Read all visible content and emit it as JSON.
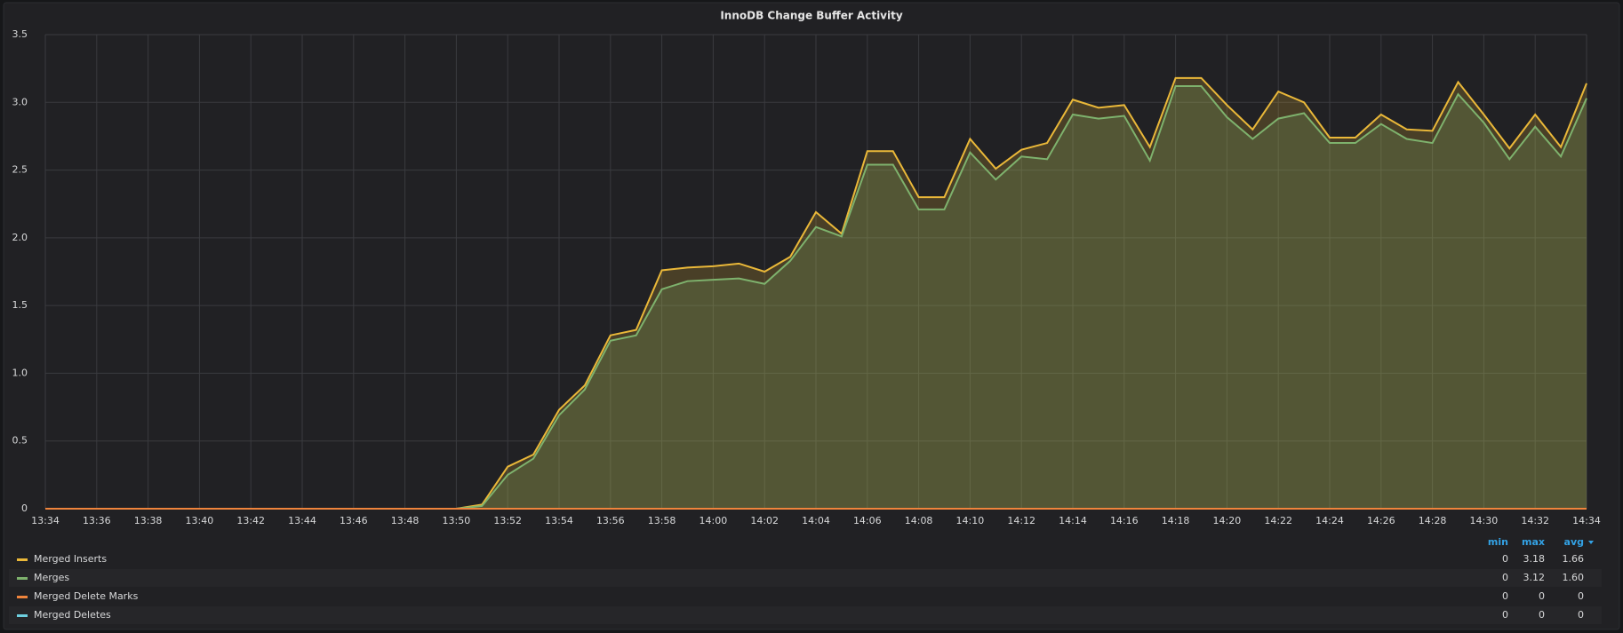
{
  "chart_data": {
    "type": "line",
    "title": "InnoDB Change Buffer Activity",
    "categories": [
      "13:34",
      null,
      "13:36",
      null,
      "13:38",
      null,
      "13:40",
      null,
      "13:42",
      null,
      "13:44",
      null,
      "13:46",
      null,
      "13:48",
      null,
      "13:50",
      null,
      "13:52",
      null,
      "13:54",
      null,
      "13:56",
      null,
      "13:58",
      null,
      "14:00",
      null,
      "14:02",
      null,
      "14:04",
      null,
      "14:06",
      null,
      "14:08",
      null,
      "14:10",
      null,
      "14:12",
      null,
      "14:14",
      null,
      "14:16",
      null,
      "14:18",
      null,
      "14:20",
      null,
      "14:22",
      null,
      "14:24",
      null,
      "14:26",
      null,
      "14:28",
      null,
      "14:30",
      null,
      "14:32",
      null,
      "14:34"
    ],
    "ylim": [
      0,
      3.5
    ],
    "yticks": [
      0,
      0.5,
      {
        "value": 1,
        "label": "1.0"
      },
      1.5,
      {
        "value": 2,
        "label": "2.0"
      },
      2.5,
      {
        "value": 3,
        "label": "3.0"
      },
      3.5
    ],
    "grid": true,
    "fill": true,
    "legend_columns": [
      "min",
      "max",
      "avg"
    ],
    "series": [
      {
        "name": "Merged Inserts",
        "color": "#eab839",
        "stats": [
          "0",
          "3.18",
          "1.66"
        ],
        "values": [
          0,
          0,
          0,
          0,
          0,
          0,
          0,
          0,
          0,
          0,
          0,
          0,
          0,
          0,
          0,
          0,
          0,
          0.03,
          0.31,
          0.4,
          0.73,
          0.91,
          1.28,
          1.32,
          1.76,
          1.78,
          1.79,
          1.81,
          1.75,
          1.86,
          2.19,
          2.03,
          2.64,
          2.64,
          2.3,
          2.3,
          2.73,
          2.51,
          2.65,
          2.7,
          3.02,
          2.96,
          2.98,
          2.67,
          3.18,
          3.18,
          2.98,
          2.8,
          3.08,
          3.0,
          2.74,
          2.74,
          2.91,
          2.8,
          2.79,
          3.15,
          2.91,
          2.66,
          2.91,
          2.67,
          3.14
        ]
      },
      {
        "name": "Merges",
        "color": "#7eb26d",
        "stats": [
          "0",
          "3.12",
          "1.60"
        ],
        "values": [
          0,
          0,
          0,
          0,
          0,
          0,
          0,
          0,
          0,
          0,
          0,
          0,
          0,
          0,
          0,
          0,
          0,
          0.02,
          0.25,
          0.37,
          0.69,
          0.88,
          1.24,
          1.28,
          1.62,
          1.68,
          1.69,
          1.7,
          1.66,
          1.83,
          2.08,
          2.01,
          2.54,
          2.54,
          2.21,
          2.21,
          2.63,
          2.43,
          2.6,
          2.58,
          2.91,
          2.88,
          2.9,
          2.57,
          3.12,
          3.12,
          2.89,
          2.73,
          2.88,
          2.92,
          2.7,
          2.7,
          2.84,
          2.73,
          2.7,
          3.06,
          2.85,
          2.58,
          2.82,
          2.6,
          3.03
        ]
      },
      {
        "name": "Merged Delete Marks",
        "color": "#ef843c",
        "stats": [
          "0",
          "0",
          "0"
        ],
        "values": [
          0,
          0,
          0,
          0,
          0,
          0,
          0,
          0,
          0,
          0,
          0,
          0,
          0,
          0,
          0,
          0,
          0,
          0,
          0,
          0,
          0,
          0,
          0,
          0,
          0,
          0,
          0,
          0,
          0,
          0,
          0,
          0,
          0,
          0,
          0,
          0,
          0,
          0,
          0,
          0,
          0,
          0,
          0,
          0,
          0,
          0,
          0,
          0,
          0,
          0,
          0,
          0,
          0,
          0,
          0,
          0,
          0,
          0,
          0,
          0,
          0
        ]
      },
      {
        "name": "Merged Deletes",
        "color": "#6ed0e0",
        "stats": [
          "0",
          "0",
          "0"
        ],
        "values": [
          0,
          0,
          0,
          0,
          0,
          0,
          0,
          0,
          0,
          0,
          0,
          0,
          0,
          0,
          0,
          0,
          0,
          0,
          0,
          0,
          0,
          0,
          0,
          0,
          0,
          0,
          0,
          0,
          0,
          0,
          0,
          0,
          0,
          0,
          0,
          0,
          0,
          0,
          0,
          0,
          0,
          0,
          0,
          0,
          0,
          0,
          0,
          0,
          0,
          0,
          0,
          0,
          0,
          0,
          0,
          0,
          0,
          0,
          0,
          0,
          0
        ]
      }
    ]
  }
}
